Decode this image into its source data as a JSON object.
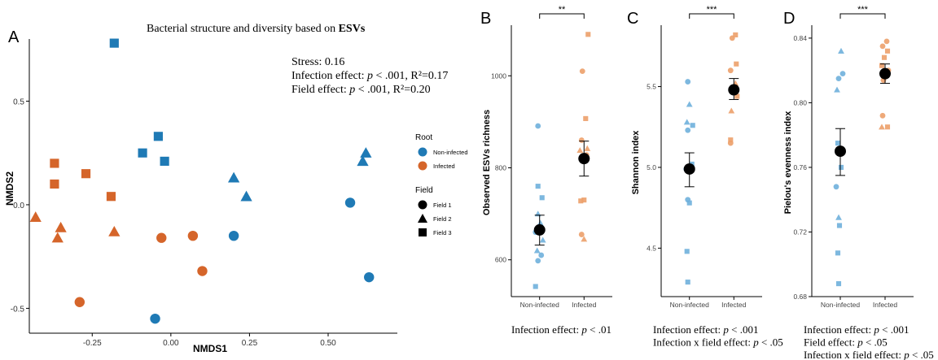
{
  "colors": {
    "noninfected": "#1f7ab5",
    "infected": "#d5652a",
    "noninfected_light": "#6fb0dc",
    "infected_light": "#eca06a"
  },
  "chart_data": [
    {
      "panel": "A",
      "type": "scatter",
      "title_plain": "Bacterial structure and diversity based on ",
      "title_bold": "ESVs",
      "xlabel": "NMDS1",
      "ylabel": "NMDS2",
      "xlim": [
        -0.45,
        0.72
      ],
      "ylim": [
        -0.62,
        0.8
      ],
      "xticks": [
        "-0.25",
        "0.00",
        "0.25",
        "0.50"
      ],
      "xtick_values": [
        -0.25,
        0,
        0.25,
        0.5
      ],
      "yticks": [
        "-0.5",
        "0.0",
        "0.5"
      ],
      "ytick_values": [
        -0.5,
        0,
        0.5
      ],
      "annotations": {
        "stress": "Stress: 0.16",
        "infection_pre": "Infection effect: ",
        "infection_p": "p",
        "infection_post": " < .001, R²=0.17",
        "field_pre": "Field effect: ",
        "field_p": "p",
        "field_post": " < .001, R²=0.20"
      },
      "legend": {
        "root_title": "Root",
        "root_items": [
          "Non-infected",
          "Infected"
        ],
        "field_title": "Field",
        "field_items": [
          "Field 1",
          "Field 2",
          "Field 3"
        ]
      },
      "points": [
        {
          "x": -0.18,
          "y": 0.78,
          "root": "Non-infected",
          "field": "Field 3"
        },
        {
          "x": -0.04,
          "y": 0.33,
          "root": "Non-infected",
          "field": "Field 3"
        },
        {
          "x": -0.09,
          "y": 0.25,
          "root": "Non-infected",
          "field": "Field 3"
        },
        {
          "x": -0.02,
          "y": 0.21,
          "root": "Non-infected",
          "field": "Field 3"
        },
        {
          "x": 0.2,
          "y": 0.13,
          "root": "Non-infected",
          "field": "Field 2"
        },
        {
          "x": 0.24,
          "y": 0.04,
          "root": "Non-infected",
          "field": "Field 2"
        },
        {
          "x": 0.62,
          "y": 0.25,
          "root": "Non-infected",
          "field": "Field 2"
        },
        {
          "x": 0.61,
          "y": 0.21,
          "root": "Non-infected",
          "field": "Field 2"
        },
        {
          "x": 0.57,
          "y": 0.01,
          "root": "Non-infected",
          "field": "Field 1"
        },
        {
          "x": 0.2,
          "y": -0.15,
          "root": "Non-infected",
          "field": "Field 1"
        },
        {
          "x": 0.63,
          "y": -0.35,
          "root": "Non-infected",
          "field": "Field 1"
        },
        {
          "x": -0.05,
          "y": -0.55,
          "root": "Non-infected",
          "field": "Field 1"
        },
        {
          "x": -0.37,
          "y": 0.2,
          "root": "Infected",
          "field": "Field 3"
        },
        {
          "x": -0.27,
          "y": 0.15,
          "root": "Infected",
          "field": "Field 3"
        },
        {
          "x": -0.37,
          "y": 0.1,
          "root": "Infected",
          "field": "Field 3"
        },
        {
          "x": -0.19,
          "y": 0.04,
          "root": "Infected",
          "field": "Field 3"
        },
        {
          "x": -0.43,
          "y": -0.06,
          "root": "Infected",
          "field": "Field 2"
        },
        {
          "x": -0.35,
          "y": -0.11,
          "root": "Infected",
          "field": "Field 2"
        },
        {
          "x": -0.36,
          "y": -0.16,
          "root": "Infected",
          "field": "Field 2"
        },
        {
          "x": -0.18,
          "y": -0.13,
          "root": "Infected",
          "field": "Field 2"
        },
        {
          "x": -0.03,
          "y": -0.16,
          "root": "Infected",
          "field": "Field 1"
        },
        {
          "x": 0.07,
          "y": -0.15,
          "root": "Infected",
          "field": "Field 1"
        },
        {
          "x": 0.1,
          "y": -0.32,
          "root": "Infected",
          "field": "Field 1"
        },
        {
          "x": -0.29,
          "y": -0.47,
          "root": "Infected",
          "field": "Field 1"
        }
      ]
    },
    {
      "panel": "B",
      "type": "scatter",
      "ylabel": "Observed ESVs richness",
      "categories": [
        "Non-infected",
        "Infected"
      ],
      "ylim": [
        520,
        1110
      ],
      "yticks": [
        "600",
        "800",
        "1000"
      ],
      "ytick_values": [
        600,
        800,
        1000
      ],
      "significance": "**",
      "footer": [
        {
          "pre": "Infection effect: ",
          "p": "p",
          "post": " < .01"
        }
      ],
      "mean": [
        665,
        820
      ],
      "err": [
        [
          632,
          697
        ],
        [
          782,
          858
        ]
      ],
      "points": [
        {
          "g": 0,
          "y": 891,
          "field": "Field 1",
          "dx": -2
        },
        {
          "g": 0,
          "y": 760,
          "field": "Field 3",
          "dx": -2
        },
        {
          "g": 0,
          "y": 735,
          "field": "Field 3",
          "dx": 3
        },
        {
          "g": 0,
          "y": 700,
          "field": "Field 2",
          "dx": -2
        },
        {
          "g": 0,
          "y": 680,
          "field": "Field 2",
          "dx": 1
        },
        {
          "g": 0,
          "y": 660,
          "field": "Field 1",
          "dx": -5
        },
        {
          "g": 0,
          "y": 643,
          "field": "Field 2",
          "dx": 4
        },
        {
          "g": 0,
          "y": 620,
          "field": "Field 2",
          "dx": -3
        },
        {
          "g": 0,
          "y": 610,
          "field": "Field 1",
          "dx": 2
        },
        {
          "g": 0,
          "y": 598,
          "field": "Field 1",
          "dx": -2
        },
        {
          "g": 0,
          "y": 542,
          "field": "Field 3",
          "dx": -5
        },
        {
          "g": 1,
          "y": 1090,
          "field": "Field 3",
          "dx": 5
        },
        {
          "g": 1,
          "y": 1010,
          "field": "Field 1",
          "dx": -2
        },
        {
          "g": 1,
          "y": 907,
          "field": "Field 3",
          "dx": 2
        },
        {
          "g": 1,
          "y": 860,
          "field": "Field 1",
          "dx": -3
        },
        {
          "g": 1,
          "y": 842,
          "field": "Field 2",
          "dx": 4
        },
        {
          "g": 1,
          "y": 838,
          "field": "Field 2",
          "dx": -5
        },
        {
          "g": 1,
          "y": 828,
          "field": "Field 1",
          "dx": 3
        },
        {
          "g": 1,
          "y": 730,
          "field": "Field 3",
          "dx": 0
        },
        {
          "g": 1,
          "y": 728,
          "field": "Field 3",
          "dx": -4
        },
        {
          "g": 1,
          "y": 655,
          "field": "Field 1",
          "dx": -3
        },
        {
          "g": 1,
          "y": 645,
          "field": "Field 2",
          "dx": 0
        }
      ]
    },
    {
      "panel": "C",
      "type": "scatter",
      "ylabel": "Shannon index",
      "categories": [
        "Non-infected",
        "Infected"
      ],
      "ylim": [
        4.2,
        5.88
      ],
      "yticks": [
        "4.5",
        "5.0",
        "5.5"
      ],
      "ytick_values": [
        4.5,
        5.0,
        5.5
      ],
      "significance": "***",
      "footer": [
        {
          "pre": "Infection effect: ",
          "p": "p",
          "post": " < .001"
        },
        {
          "pre": "Infection x field effect: ",
          "p": "p",
          "post": " < .05"
        }
      ],
      "mean": [
        4.99,
        5.48
      ],
      "err": [
        [
          4.88,
          5.09
        ],
        [
          5.42,
          5.55
        ]
      ],
      "points": [
        {
          "g": 0,
          "y": 5.53,
          "field": "Field 1",
          "dx": -2
        },
        {
          "g": 0,
          "y": 5.39,
          "field": "Field 2",
          "dx": 0
        },
        {
          "g": 0,
          "y": 5.28,
          "field": "Field 2",
          "dx": -3
        },
        {
          "g": 0,
          "y": 5.26,
          "field": "Field 3",
          "dx": 4
        },
        {
          "g": 0,
          "y": 5.23,
          "field": "Field 1",
          "dx": -2
        },
        {
          "g": 0,
          "y": 5.02,
          "field": "Field 3",
          "dx": 3
        },
        {
          "g": 0,
          "y": 4.99,
          "field": "Field 1",
          "dx": -4
        },
        {
          "g": 0,
          "y": 4.8,
          "field": "Field 1",
          "dx": -2
        },
        {
          "g": 0,
          "y": 4.78,
          "field": "Field 3",
          "dx": 0
        },
        {
          "g": 0,
          "y": 4.48,
          "field": "Field 3",
          "dx": -3
        },
        {
          "g": 0,
          "y": 4.29,
          "field": "Field 3",
          "dx": -2
        },
        {
          "g": 1,
          "y": 5.82,
          "field": "Field 3",
          "dx": 2
        },
        {
          "g": 1,
          "y": 5.8,
          "field": "Field 1",
          "dx": -2
        },
        {
          "g": 1,
          "y": 5.64,
          "field": "Field 3",
          "dx": 3
        },
        {
          "g": 1,
          "y": 5.6,
          "field": "Field 1",
          "dx": -4
        },
        {
          "g": 1,
          "y": 5.52,
          "field": "Field 2",
          "dx": 2
        },
        {
          "g": 1,
          "y": 5.49,
          "field": "Field 1",
          "dx": -1
        },
        {
          "g": 1,
          "y": 5.44,
          "field": "Field 3",
          "dx": 4
        },
        {
          "g": 1,
          "y": 5.35,
          "field": "Field 2",
          "dx": -3
        },
        {
          "g": 1,
          "y": 5.17,
          "field": "Field 3",
          "dx": -4
        },
        {
          "g": 1,
          "y": 5.15,
          "field": "Field 1",
          "dx": -4
        }
      ]
    },
    {
      "panel": "D",
      "type": "scatter",
      "ylabel": "Pielou's evenness index",
      "categories": [
        "Non-infected",
        "Infected"
      ],
      "ylim": [
        0.68,
        0.848
      ],
      "yticks": [
        "0.68",
        "0.72",
        "0.76",
        "0.80",
        "0.84"
      ],
      "ytick_values": [
        0.68,
        0.72,
        0.76,
        0.8,
        0.84
      ],
      "significance": "***",
      "footer": [
        {
          "pre": "Infection effect: ",
          "p": "p",
          "post": " < .001"
        },
        {
          "pre": "Field effect: ",
          "p": "p",
          "post": " < .05"
        },
        {
          "pre": "Infection x field effect: ",
          "p": "p",
          "post": " < .05"
        }
      ],
      "mean": [
        0.77,
        0.818
      ],
      "err": [
        [
          0.755,
          0.784
        ],
        [
          0.812,
          0.824
        ]
      ],
      "points": [
        {
          "g": 0,
          "y": 0.832,
          "field": "Field 2",
          "dx": 1
        },
        {
          "g": 0,
          "y": 0.818,
          "field": "Field 1",
          "dx": 3
        },
        {
          "g": 0,
          "y": 0.815,
          "field": "Field 1",
          "dx": -2
        },
        {
          "g": 0,
          "y": 0.808,
          "field": "Field 2",
          "dx": -4
        },
        {
          "g": 0,
          "y": 0.775,
          "field": "Field 3",
          "dx": -3
        },
        {
          "g": 0,
          "y": 0.76,
          "field": "Field 3",
          "dx": 1
        },
        {
          "g": 0,
          "y": 0.748,
          "field": "Field 1",
          "dx": -5
        },
        {
          "g": 0,
          "y": 0.729,
          "field": "Field 2",
          "dx": -2
        },
        {
          "g": 0,
          "y": 0.724,
          "field": "Field 3",
          "dx": -1
        },
        {
          "g": 0,
          "y": 0.707,
          "field": "Field 3",
          "dx": -3
        },
        {
          "g": 0,
          "y": 0.688,
          "field": "Field 3",
          "dx": -2
        },
        {
          "g": 1,
          "y": 0.838,
          "field": "Field 1",
          "dx": 2
        },
        {
          "g": 1,
          "y": 0.835,
          "field": "Field 1",
          "dx": -3
        },
        {
          "g": 1,
          "y": 0.832,
          "field": "Field 3",
          "dx": 3
        },
        {
          "g": 1,
          "y": 0.828,
          "field": "Field 3",
          "dx": -1
        },
        {
          "g": 1,
          "y": 0.823,
          "field": "Field 3",
          "dx": -4
        },
        {
          "g": 1,
          "y": 0.82,
          "field": "Field 1",
          "dx": 4
        },
        {
          "g": 1,
          "y": 0.814,
          "field": "Field 1",
          "dx": -2
        },
        {
          "g": 1,
          "y": 0.792,
          "field": "Field 1",
          "dx": -3
        },
        {
          "g": 1,
          "y": 0.785,
          "field": "Field 2",
          "dx": -4
        },
        {
          "g": 1,
          "y": 0.785,
          "field": "Field 3",
          "dx": 3
        }
      ]
    }
  ],
  "panel_labels": [
    "A",
    "B",
    "C",
    "D"
  ]
}
